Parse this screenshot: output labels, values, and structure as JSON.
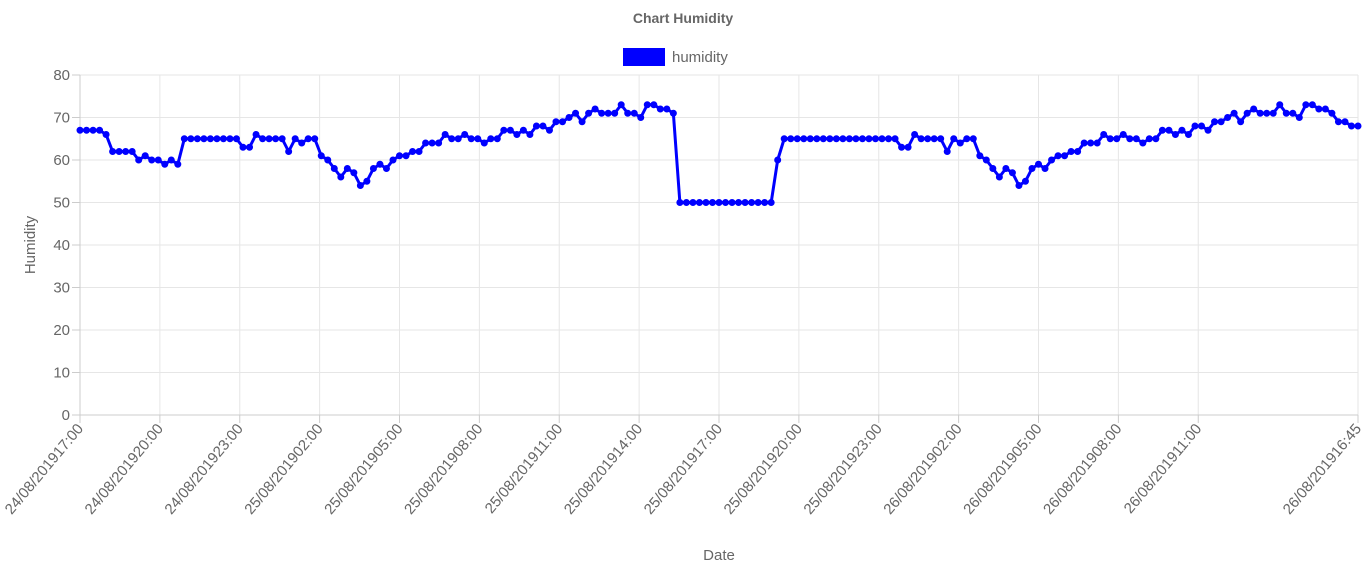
{
  "chart_data": {
    "type": "line",
    "title": "Chart Humidity",
    "xlabel": "Date",
    "ylabel": "Humidity",
    "ylim": [
      0,
      80
    ],
    "y_ticks": [
      0,
      10,
      20,
      30,
      40,
      50,
      60,
      70,
      80
    ],
    "grid": true,
    "legend_position": "top",
    "x_tick_labels": [
      "24/08/201917:00",
      "24/08/201920:00",
      "24/08/201923:00",
      "25/08/201902:00",
      "25/08/201905:00",
      "25/08/201908:00",
      "25/08/201911:00",
      "25/08/201914:00",
      "25/08/201917:00",
      "25/08/201920:00",
      "25/08/201923:00",
      "26/08/201902:00",
      "26/08/201905:00",
      "26/08/201908:00",
      "26/08/201911:00",
      "26/08/201916:45"
    ],
    "series": [
      {
        "name": "humidity",
        "color": "#0000ff",
        "values": [
          67,
          67,
          67,
          67,
          66,
          62,
          62,
          62,
          62,
          60,
          61,
          60,
          60,
          59,
          60,
          59,
          65,
          65,
          65,
          65,
          65,
          65,
          65,
          65,
          65,
          63,
          63,
          66,
          65,
          65,
          65,
          65,
          62,
          65,
          64,
          65,
          65,
          61,
          60,
          58,
          56,
          58,
          57,
          54,
          55,
          58,
          59,
          58,
          60,
          61,
          61,
          62,
          62,
          64,
          64,
          64,
          66,
          65,
          65,
          66,
          65,
          65,
          64,
          65,
          65,
          67,
          67,
          66,
          67,
          66,
          68,
          68,
          67,
          69,
          69,
          70,
          71,
          69,
          71,
          72,
          71,
          71,
          71,
          73,
          71,
          71,
          70,
          73,
          73,
          72,
          72,
          71,
          50,
          50,
          50,
          50,
          50,
          50,
          50,
          50,
          50,
          50,
          50,
          50,
          50,
          50,
          50,
          60,
          65,
          65,
          65,
          65,
          65,
          65,
          65,
          65,
          65,
          65,
          65,
          65,
          65,
          65,
          65,
          65,
          65,
          65,
          63,
          63,
          66,
          65,
          65,
          65,
          65,
          62,
          65,
          64,
          65,
          65,
          61,
          60,
          58,
          56,
          58,
          57,
          54,
          55,
          58,
          59,
          58,
          60,
          61,
          61,
          62,
          62,
          64,
          64,
          64,
          66,
          65,
          65,
          66,
          65,
          65,
          64,
          65,
          65,
          67,
          67,
          66,
          67,
          66,
          68,
          68,
          67,
          69,
          69,
          70,
          71,
          69,
          71,
          72,
          71,
          71,
          71,
          73,
          71,
          71,
          70,
          73,
          73,
          72,
          72,
          71,
          69,
          69,
          68,
          68
        ]
      }
    ]
  }
}
